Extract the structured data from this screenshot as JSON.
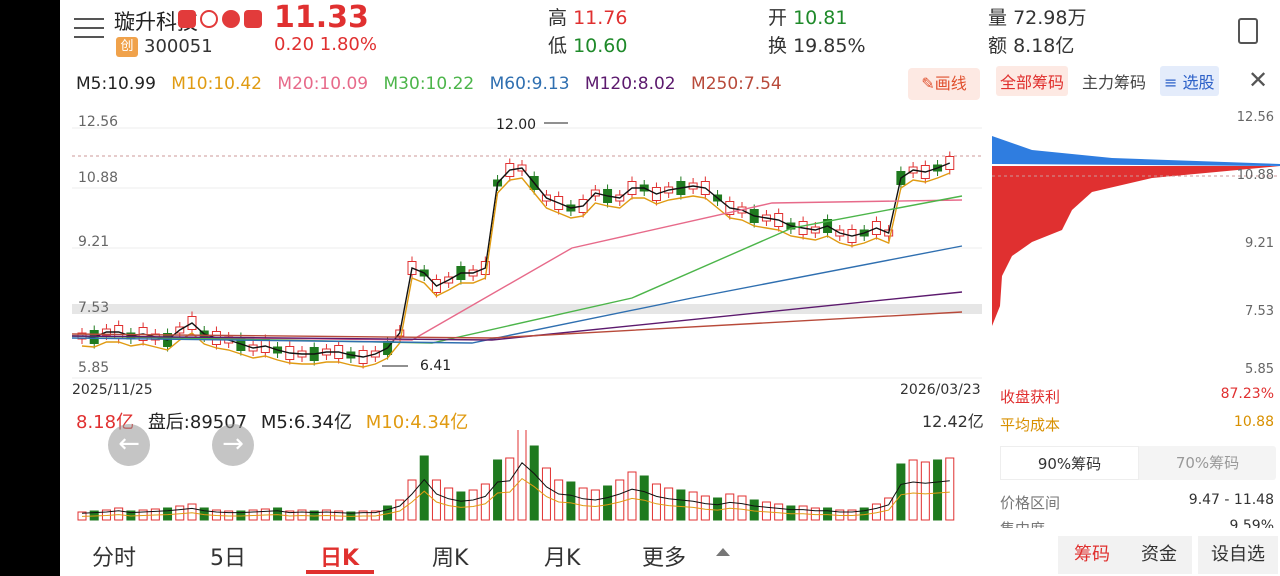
{
  "header": {
    "stock_name": "璇升科技",
    "price": "11.33",
    "board_tag": "创",
    "code": "300051",
    "change": "0.20  1.80%",
    "high_label": "高",
    "high": "11.76",
    "low_label": "低",
    "low": "10.60",
    "open_label": "开",
    "open": "10.81",
    "turnover_label": "换",
    "turnover": "19.85%",
    "vol_label": "量",
    "vol": "72.98万",
    "amount_label": "额",
    "amount": "8.18亿"
  },
  "ma": {
    "m5": "M5:10.99",
    "m10": "M10:10.42",
    "m20": "M20:10.09",
    "m30": "M30:10.22",
    "m60": "M60:9.13",
    "m120": "M120:8.02",
    "m250": "M250:7.54"
  },
  "draw_button": "✎画线",
  "kchart": {
    "yticks": [
      "12.56",
      "10.88",
      "9.21",
      "7.53",
      "5.85"
    ],
    "start_date": "2025/11/25",
    "end_date": "2026/03/23",
    "high_note": "12.00",
    "low_note": "6.41"
  },
  "volume": {
    "total": "8.18亿",
    "after_hours": "盘后:89507",
    "m5": "M5:6.34亿",
    "m10": "M10:4.34亿",
    "max": "12.42亿"
  },
  "nav": {
    "prev": "←",
    "next": "→"
  },
  "right_panel": {
    "tabs": [
      "全部筹码",
      "主力筹码",
      "≡ 选股"
    ],
    "close": "✕",
    "yticks": [
      "12.56",
      "10.88",
      "9.21",
      "7.53",
      "5.85"
    ],
    "profit_label": "收盘获利",
    "profit": "87.23%",
    "avg_cost_label": "平均成本",
    "avg_cost": "10.88",
    "seg_90": "90%筹码",
    "seg_70": "70%筹码",
    "range_label": "价格区间",
    "range": "9.47 - 11.48",
    "conc_label": "集中度",
    "conc": "9.59%"
  },
  "bottom_tabs": [
    "分时",
    "5日",
    "日K",
    "周K",
    "月K",
    "更多"
  ],
  "bottom_buttons": {
    "chips": "筹码",
    "funds": "资金",
    "settings": "设自选"
  },
  "colors": {
    "up": "#e03030",
    "down": "#1f7a1f",
    "accent": "#e0302e"
  },
  "chart_data": {
    "type": "candlestick",
    "y_range": [
      5.85,
      12.56
    ],
    "x_range": [
      "2025/11/25",
      "2026/03/23"
    ],
    "ma_lines": [
      "M5",
      "M10",
      "M20",
      "M30",
      "M60",
      "M120",
      "M250"
    ],
    "annotations": [
      "12.00",
      "6.41"
    ],
    "volume_max": "12.42亿"
  }
}
